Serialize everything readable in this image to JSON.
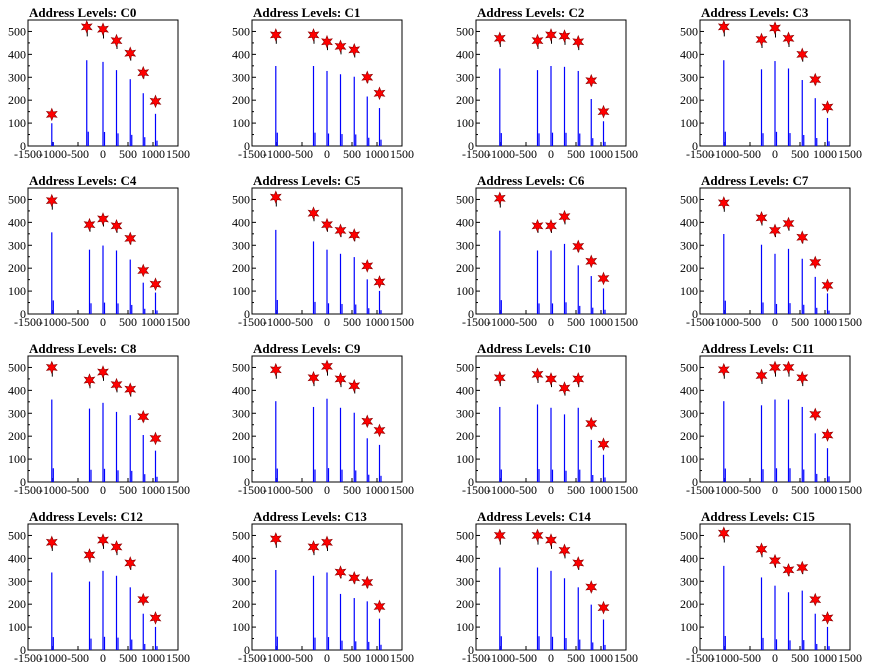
{
  "chart_data": [
    {
      "type": "bar",
      "title": "Address Levels: C0",
      "xlim": [
        -1500,
        1500
      ],
      "ylim": [
        0,
        550
      ],
      "xticks": [
        -1500,
        -1000,
        -500,
        0,
        500,
        1000,
        1500
      ],
      "yticks": [
        0,
        100,
        200,
        300,
        400,
        500
      ],
      "star_x": [
        -1024,
        -325,
        0,
        270,
        545,
        805,
        1050
      ],
      "star_y": [
        138,
        520,
        510,
        460,
        405,
        320,
        195
      ]
    },
    {
      "type": "bar",
      "title": "Address Levels: C1",
      "xlim": [
        -1500,
        1500
      ],
      "ylim": [
        0,
        550
      ],
      "xticks": [
        -1500,
        -1000,
        -500,
        0,
        500,
        1000,
        1500
      ],
      "yticks": [
        0,
        100,
        200,
        300,
        400,
        500
      ],
      "star_x": [
        -1024,
        -270,
        0,
        270,
        545,
        805,
        1050
      ],
      "star_y": [
        485,
        485,
        455,
        435,
        420,
        300,
        230
      ]
    },
    {
      "type": "bar",
      "title": "Address Levels: C2",
      "xlim": [
        -1500,
        1500
      ],
      "ylim": [
        0,
        550
      ],
      "xticks": [
        -1500,
        -1000,
        -500,
        0,
        500,
        1000,
        1500
      ],
      "yticks": [
        0,
        100,
        200,
        300,
        400,
        500
      ],
      "star_x": [
        -1024,
        -270,
        0,
        270,
        545,
        805,
        1050
      ],
      "star_y": [
        470,
        460,
        485,
        480,
        455,
        285,
        150
      ]
    },
    {
      "type": "bar",
      "title": "Address Levels: C3",
      "xlim": [
        -1500,
        1500
      ],
      "ylim": [
        0,
        550
      ],
      "xticks": [
        -1500,
        -1000,
        -500,
        0,
        500,
        1000,
        1500
      ],
      "yticks": [
        0,
        100,
        200,
        300,
        400,
        500
      ],
      "star_x": [
        -1024,
        -270,
        0,
        270,
        545,
        805,
        1050
      ],
      "star_y": [
        520,
        465,
        515,
        470,
        400,
        290,
        170
      ]
    },
    {
      "type": "bar",
      "title": "Address Levels: C4",
      "xlim": [
        -1500,
        1500
      ],
      "ylim": [
        0,
        550
      ],
      "xticks": [
        -1500,
        -1000,
        -500,
        0,
        500,
        1000,
        1500
      ],
      "yticks": [
        0,
        100,
        200,
        300,
        400,
        500
      ],
      "star_x": [
        -1024,
        -270,
        0,
        270,
        545,
        805,
        1050
      ],
      "star_y": [
        495,
        390,
        415,
        385,
        330,
        190,
        130
      ]
    },
    {
      "type": "bar",
      "title": "Address Levels: C5",
      "xlim": [
        -1500,
        1500
      ],
      "ylim": [
        0,
        550
      ],
      "xticks": [
        -1500,
        -1000,
        -500,
        0,
        500,
        1000,
        1500
      ],
      "yticks": [
        0,
        100,
        200,
        300,
        400,
        500
      ],
      "star_x": [
        -1024,
        -270,
        0,
        270,
        545,
        805,
        1050
      ],
      "star_y": [
        510,
        440,
        390,
        365,
        345,
        210,
        140
      ]
    },
    {
      "type": "bar",
      "title": "Address Levels: C6",
      "xlim": [
        -1500,
        1500
      ],
      "ylim": [
        0,
        550
      ],
      "xticks": [
        -1500,
        -1000,
        -500,
        0,
        500,
        1000,
        1500
      ],
      "yticks": [
        0,
        100,
        200,
        300,
        400,
        500
      ],
      "star_x": [
        -1024,
        -270,
        0,
        270,
        545,
        805,
        1050
      ],
      "star_y": [
        505,
        385,
        385,
        425,
        295,
        230,
        155
      ]
    },
    {
      "type": "bar",
      "title": "Address Levels: C7",
      "xlim": [
        -1500,
        1500
      ],
      "ylim": [
        0,
        550
      ],
      "xticks": [
        -1500,
        -1000,
        -500,
        0,
        500,
        1000,
        1500
      ],
      "yticks": [
        0,
        100,
        200,
        300,
        400,
        500
      ],
      "star_x": [
        -1024,
        -270,
        0,
        270,
        545,
        805,
        1050
      ],
      "star_y": [
        485,
        420,
        365,
        395,
        335,
        225,
        125
      ]
    },
    {
      "type": "bar",
      "title": "Address Levels: C8",
      "xlim": [
        -1500,
        1500
      ],
      "ylim": [
        0,
        550
      ],
      "xticks": [
        -1500,
        -1000,
        -500,
        0,
        500,
        1000,
        1500
      ],
      "yticks": [
        0,
        100,
        200,
        300,
        400,
        500
      ],
      "star_x": [
        -1024,
        -270,
        0,
        270,
        545,
        805,
        1050
      ],
      "star_y": [
        500,
        445,
        480,
        425,
        405,
        285,
        190
      ]
    },
    {
      "type": "bar",
      "title": "Address Levels: C9",
      "xlim": [
        -1500,
        1500
      ],
      "ylim": [
        0,
        550
      ],
      "xticks": [
        -1500,
        -1000,
        -500,
        0,
        500,
        1000,
        1500
      ],
      "yticks": [
        0,
        100,
        200,
        300,
        400,
        500
      ],
      "star_x": [
        -1024,
        -270,
        0,
        270,
        545,
        805,
        1050
      ],
      "star_y": [
        490,
        455,
        505,
        450,
        420,
        265,
        225
      ]
    },
    {
      "type": "bar",
      "title": "Address Levels: C10",
      "xlim": [
        -1500,
        1500
      ],
      "ylim": [
        0,
        550
      ],
      "xticks": [
        -1500,
        -1000,
        -500,
        0,
        500,
        1000,
        1500
      ],
      "yticks": [
        0,
        100,
        200,
        300,
        400,
        500
      ],
      "star_x": [
        -1024,
        -270,
        0,
        270,
        545,
        805,
        1050
      ],
      "star_y": [
        455,
        470,
        450,
        410,
        450,
        255,
        165
      ]
    },
    {
      "type": "bar",
      "title": "Address Levels: C11",
      "xlim": [
        -1500,
        1500
      ],
      "ylim": [
        0,
        550
      ],
      "xticks": [
        -1500,
        -1000,
        -500,
        0,
        500,
        1000,
        1500
      ],
      "yticks": [
        0,
        100,
        200,
        300,
        400,
        500
      ],
      "star_x": [
        -1024,
        -270,
        0,
        270,
        545,
        805,
        1050
      ],
      "star_y": [
        490,
        465,
        500,
        500,
        455,
        295,
        205
      ]
    },
    {
      "type": "bar",
      "title": "Address Levels: C12",
      "xlim": [
        -1500,
        1500
      ],
      "ylim": [
        0,
        550
      ],
      "xticks": [
        -1500,
        -1000,
        -500,
        0,
        500,
        1000,
        1500
      ],
      "yticks": [
        0,
        100,
        200,
        300,
        400,
        500
      ],
      "star_x": [
        -1024,
        -270,
        0,
        270,
        545,
        805,
        1050
      ],
      "star_y": [
        470,
        415,
        480,
        450,
        380,
        220,
        140
      ]
    },
    {
      "type": "bar",
      "title": "Address Levels: C13",
      "xlim": [
        -1500,
        1500
      ],
      "ylim": [
        0,
        550
      ],
      "xticks": [
        -1500,
        -1000,
        -500,
        0,
        500,
        1000,
        1500
      ],
      "yticks": [
        0,
        100,
        200,
        300,
        400,
        500
      ],
      "star_x": [
        -1024,
        -270,
        0,
        270,
        545,
        805,
        1050
      ],
      "star_y": [
        485,
        450,
        470,
        340,
        315,
        295,
        190
      ]
    },
    {
      "type": "bar",
      "title": "Address Levels: C14",
      "xlim": [
        -1500,
        1500
      ],
      "ylim": [
        0,
        550
      ],
      "xticks": [
        -1500,
        -1000,
        -500,
        0,
        500,
        1000,
        1500
      ],
      "yticks": [
        0,
        100,
        200,
        300,
        400,
        500
      ],
      "star_x": [
        -1024,
        -270,
        0,
        270,
        545,
        805,
        1050
      ],
      "star_y": [
        500,
        500,
        480,
        435,
        380,
        275,
        185
      ]
    },
    {
      "type": "bar",
      "title": "Address Levels: C15",
      "xlim": [
        -1500,
        1500
      ],
      "ylim": [
        0,
        550
      ],
      "xticks": [
        -1500,
        -1000,
        -500,
        0,
        500,
        1000,
        1500
      ],
      "yticks": [
        0,
        100,
        200,
        300,
        400,
        500
      ],
      "star_x": [
        -1024,
        -270,
        0,
        270,
        545,
        805,
        1050
      ],
      "star_y": [
        510,
        440,
        390,
        350,
        360,
        220,
        140
      ]
    }
  ],
  "colors": {
    "bars": "#0000ff",
    "stars": "#ff0000",
    "axes": "#000000"
  }
}
